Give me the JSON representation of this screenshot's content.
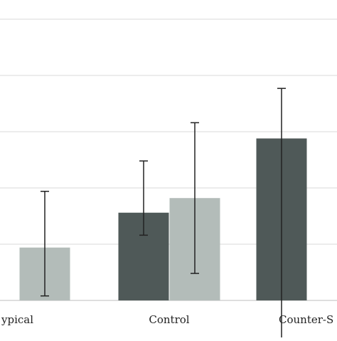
{
  "chart_data": {
    "type": "bar",
    "categories": [
      "Stereotypical",
      "Control",
      "Counter-Stereotypical"
    ],
    "category_labels_visible": [
      "ypical",
      "Control",
      "Counter-S"
    ],
    "series": [
      {
        "color": "#4f5958",
        "values": [
          null,
          1.56,
          2.88
        ],
        "error_low": [
          null,
          1.16,
          null
        ],
        "error_high": [
          null,
          2.48,
          3.77
        ]
      },
      {
        "color": "#b3bcb9",
        "values": [
          0.94,
          1.82,
          null
        ],
        "error_low": [
          0.08,
          0.48,
          null
        ],
        "error_high": [
          1.94,
          3.16,
          null
        ]
      }
    ],
    "ylim": [
      0,
      5.5
    ],
    "gridlines": [
      0,
      1,
      2,
      3,
      4,
      5
    ],
    "grid": true,
    "legend": "none",
    "title": "",
    "xlabel": "",
    "ylabel": ""
  }
}
